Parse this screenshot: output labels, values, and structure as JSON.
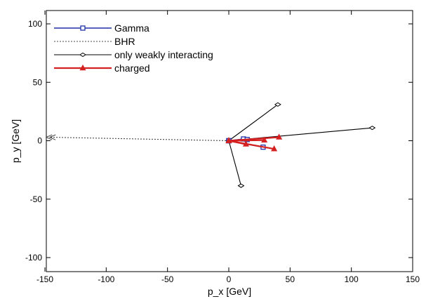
{
  "chart_data": {
    "type": "line",
    "xlabel": "p_x [GeV]",
    "ylabel": "p_y [GeV]",
    "xlim": [
      -150,
      150
    ],
    "ylim": [
      -115,
      115
    ],
    "xticks": [
      -150,
      -100,
      -50,
      0,
      50,
      100,
      150
    ],
    "yticks": [
      -100,
      -50,
      0,
      50,
      100
    ],
    "grid": false,
    "legend_position": "top-left",
    "series": [
      {
        "name": "Gamma",
        "color": "#1f2fa8",
        "marker": "square-open",
        "dash": "solid",
        "segments": [
          [
            [
              0,
              0
            ],
            [
              12,
              1.5
            ]
          ],
          [
            [
              0,
              0
            ],
            [
              15,
              1
            ]
          ],
          [
            [
              0,
              0
            ],
            [
              28,
              -5.5
            ]
          ]
        ]
      },
      {
        "name": "BHR",
        "color": "#444444",
        "marker": "arrow-head",
        "dash": "dotted",
        "segments": [
          [
            [
              0,
              0
            ],
            [
              -146,
              3
            ]
          ]
        ]
      },
      {
        "name": "only weakly interacting",
        "color": "#000000",
        "marker": "diamond-open",
        "dash": "solid",
        "segments": [
          [
            [
              0,
              0
            ],
            [
              40,
              31
            ]
          ],
          [
            [
              0,
              0
            ],
            [
              117,
              11
            ]
          ],
          [
            [
              0,
              0
            ],
            [
              10,
              -38.5
            ]
          ]
        ]
      },
      {
        "name": "charged",
        "color": "#d42020",
        "marker": "triangle-filled",
        "dash": "solid",
        "segments": [
          [
            [
              0,
              0
            ],
            [
              41,
              3
            ]
          ],
          [
            [
              0,
              0
            ],
            [
              29,
              0.5
            ]
          ],
          [
            [
              0,
              0
            ],
            [
              37,
              -7
            ]
          ],
          [
            [
              0,
              0
            ],
            [
              14,
              -3
            ]
          ]
        ]
      }
    ]
  }
}
